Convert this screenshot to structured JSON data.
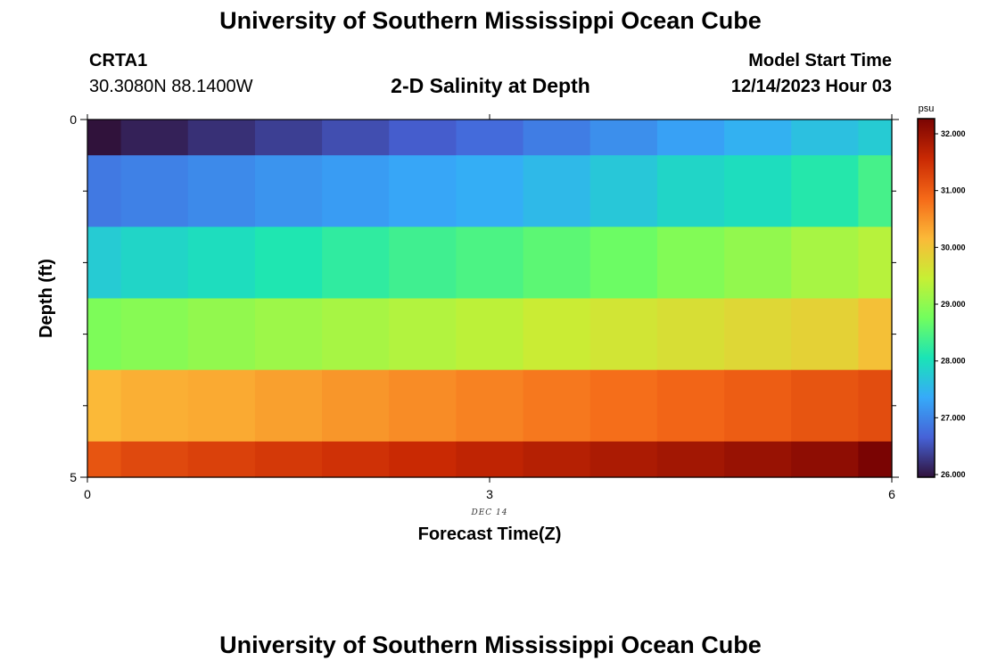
{
  "header": {
    "title": "University of Southern Mississippi Ocean Cube",
    "station": "CRTA1",
    "coords": "30.3080N  88.1400W",
    "subtitle": "2-D Salinity at Depth",
    "start_label": "Model Start Time",
    "start_value": "12/14/2023 Hour 03"
  },
  "footer": {
    "title": "University of Southern Mississippi Ocean Cube"
  },
  "chart_data": {
    "type": "heatmap",
    "title": "2-D Salinity at Depth",
    "xlabel": "Forecast Time(Z)",
    "ylabel": "Depth (ft)",
    "x_ticks": [
      "0",
      "3",
      "6"
    ],
    "x_sub_label": "DEC 14",
    "y_ticks": [
      "0",
      "5"
    ],
    "xlim": [
      0,
      6
    ],
    "ylim": [
      0,
      5
    ],
    "x_edges": [
      0,
      0.25,
      0.75,
      1.25,
      1.75,
      2.25,
      2.75,
      3.25,
      3.75,
      4.25,
      4.75,
      5.25,
      5.75,
      6
    ],
    "depth_edges": [
      0,
      0.5,
      1.5,
      2.5,
      3.5,
      4.5,
      5
    ],
    "values": [
      [
        26.0,
        26.15,
        26.3,
        26.45,
        26.6,
        26.75,
        26.9,
        27.1,
        27.3,
        27.5,
        27.7,
        27.9,
        28.05
      ],
      [
        27.05,
        27.15,
        27.25,
        27.35,
        27.45,
        27.55,
        27.65,
        27.8,
        28.0,
        28.2,
        28.3,
        28.5,
        28.8
      ],
      [
        28.05,
        28.2,
        28.3,
        28.45,
        28.6,
        28.75,
        28.85,
        29.0,
        29.15,
        29.35,
        29.5,
        29.7,
        29.85
      ],
      [
        29.3,
        29.4,
        29.5,
        29.6,
        29.7,
        29.8,
        29.9,
        30.05,
        30.15,
        30.25,
        30.35,
        30.45,
        30.7
      ],
      [
        30.8,
        30.9,
        30.95,
        31.05,
        31.15,
        31.25,
        31.35,
        31.45,
        31.55,
        31.65,
        31.75,
        31.85,
        31.95
      ],
      [
        31.85,
        32.0,
        32.1,
        32.2,
        32.3,
        32.4,
        32.5,
        32.6,
        32.7,
        32.8,
        32.9,
        33.0,
        33.2
      ]
    ],
    "colorbar": {
      "unit": "psu",
      "min": 26.0,
      "max": 32.0,
      "ticks": [
        "26.000",
        "27.000",
        "28.000",
        "29.000",
        "30.000",
        "31.000",
        "32.000"
      ],
      "stops": [
        "#30123b",
        "#4662d7",
        "#36aaf9",
        "#1ae4b6",
        "#72fe5e",
        "#c7ef34",
        "#fbb938",
        "#f56918",
        "#c92903",
        "#7a0403"
      ]
    }
  }
}
